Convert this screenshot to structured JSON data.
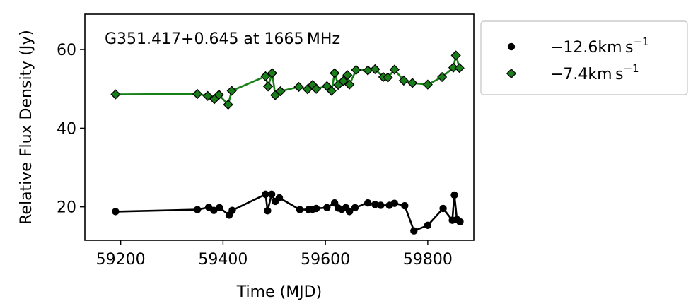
{
  "chart_data": {
    "type": "line",
    "title": "G351.417+0.645 at 1665 MHz",
    "xlabel": "Time (MJD)",
    "ylabel": "Relative Flux Density (Jy)",
    "xlim": [
      59130,
      59890
    ],
    "ylim": [
      11.5,
      69
    ],
    "xticks": [
      59200,
      59400,
      59600,
      59800
    ],
    "yticks": [
      20,
      40,
      60
    ],
    "grid": false,
    "legend_position": "outside-right",
    "series": [
      {
        "name": "−12.6km s⁻¹",
        "name_parts": {
          "main": "−12.6km s",
          "sup": "−1"
        },
        "color": "#000000",
        "marker": "circle",
        "x": [
          59190,
          59350,
          59372,
          59382,
          59393,
          59412,
          59418,
          59483,
          59487,
          59495,
          59502,
          59510,
          59550,
          59567,
          59575,
          59582,
          59603,
          59618,
          59625,
          59632,
          59640,
          59647,
          59658,
          59683,
          59697,
          59708,
          59725,
          59735,
          59755,
          59773,
          59800,
          59830,
          59848,
          59852,
          59857,
          59863
        ],
        "y": [
          18.8,
          19.3,
          19.9,
          19.1,
          19.8,
          17.9,
          19.1,
          23.2,
          19.0,
          23.2,
          21.4,
          22.3,
          19.3,
          19.3,
          19.4,
          19.6,
          19.8,
          21.0,
          19.7,
          19.4,
          19.8,
          18.8,
          19.8,
          21.0,
          20.6,
          20.4,
          20.4,
          20.9,
          20.3,
          13.9,
          15.3,
          19.6,
          16.6,
          23.0,
          16.8,
          16.2
        ]
      },
      {
        "name": "−7.4km s⁻¹",
        "name_parts": {
          "main": "−7.4km s",
          "sup": "−1"
        },
        "color": "#1a7f1a",
        "line_color": "#178017",
        "marker": "diamond",
        "x": [
          59190,
          59350,
          59370,
          59383,
          59392,
          59410,
          59417,
          59483,
          59488,
          59496,
          59502,
          59512,
          59548,
          59565,
          59575,
          59582,
          59603,
          59612,
          59618,
          59625,
          59635,
          59643,
          59647,
          59660,
          59683,
          59697,
          59713,
          59722,
          59735,
          59753,
          59770,
          59800,
          59828,
          59850,
          59855,
          59862
        ],
        "y": [
          48.6,
          48.7,
          48.2,
          47.4,
          48.5,
          46.0,
          49.5,
          53.2,
          50.6,
          54.0,
          48.4,
          49.4,
          50.5,
          49.9,
          51.0,
          50.0,
          50.7,
          49.5,
          54.0,
          51.0,
          52.0,
          53.5,
          51.1,
          54.8,
          54.7,
          55.0,
          53.0,
          52.9,
          54.9,
          52.1,
          51.5,
          51.1,
          53.0,
          55.4,
          58.5,
          55.3
        ]
      }
    ]
  }
}
